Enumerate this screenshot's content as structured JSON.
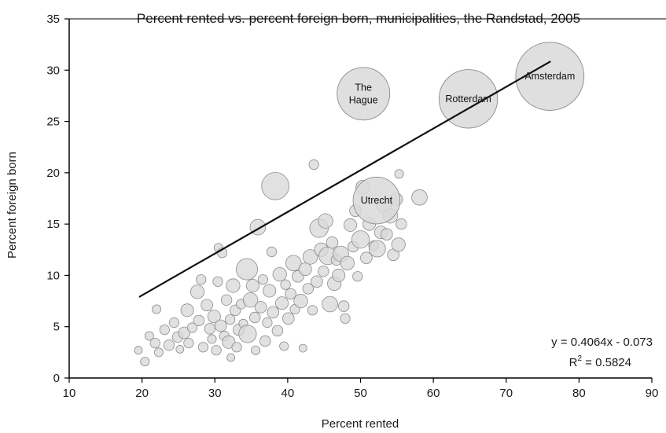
{
  "chart_data": {
    "type": "scatter",
    "title": "Percent rented vs. percent foreign born, municipalities, the Randstad, 2005",
    "xlabel": "Percent rented",
    "ylabel": "Percent foreign born",
    "xlim": [
      10,
      90
    ],
    "ylim": [
      0,
      35
    ],
    "x_ticks": [
      "10",
      "20",
      "30",
      "40",
      "50",
      "60",
      "70",
      "80",
      "90"
    ],
    "y_ticks": [
      "0",
      "5",
      "10",
      "15",
      "20",
      "25",
      "30",
      "35"
    ],
    "grid": false,
    "bubble_color": "#d9d9d9",
    "bubble_edge": "#8c8c8c",
    "trendline": {
      "equation": "y = 0.4064x - 0.073",
      "r2_label": "R",
      "r2_exp": "2",
      "r2_value": " = 0.5824",
      "slope": 0.4064,
      "intercept": -0.073,
      "x_range": [
        19.6,
        76.1
      ]
    },
    "labeled_points": [
      {
        "name": "Amsterdam",
        "lines": [
          "Amsterdam"
        ],
        "x": 76.0,
        "y": 29.4,
        "size": 7.0
      },
      {
        "name": "Rotterdam",
        "lines": [
          "Rotterdam"
        ],
        "x": 64.8,
        "y": 27.2,
        "size": 6.0
      },
      {
        "name": "The Hague",
        "lines": [
          "The",
          "Hague"
        ],
        "x": 50.4,
        "y": 27.7,
        "size": 5.4
      },
      {
        "name": "Utrecht",
        "lines": [
          "Utrecht"
        ],
        "x": 52.2,
        "y": 17.3,
        "size": 4.8
      }
    ],
    "points": [
      {
        "x": 19.5,
        "y": 2.7,
        "s": 0.8
      },
      {
        "x": 20.4,
        "y": 1.6,
        "s": 0.9
      },
      {
        "x": 21.0,
        "y": 4.1,
        "s": 0.9
      },
      {
        "x": 21.8,
        "y": 3.4,
        "s": 1.0
      },
      {
        "x": 22.0,
        "y": 6.7,
        "s": 0.9
      },
      {
        "x": 22.3,
        "y": 2.5,
        "s": 0.9
      },
      {
        "x": 23.1,
        "y": 4.7,
        "s": 1.0
      },
      {
        "x": 23.7,
        "y": 3.2,
        "s": 1.1
      },
      {
        "x": 24.4,
        "y": 5.4,
        "s": 1.0
      },
      {
        "x": 24.9,
        "y": 4.0,
        "s": 1.1
      },
      {
        "x": 25.2,
        "y": 2.8,
        "s": 0.8
      },
      {
        "x": 25.8,
        "y": 4.4,
        "s": 1.2
      },
      {
        "x": 26.2,
        "y": 6.6,
        "s": 1.3
      },
      {
        "x": 26.4,
        "y": 3.4,
        "s": 1.0
      },
      {
        "x": 26.9,
        "y": 4.9,
        "s": 1.0
      },
      {
        "x": 27.6,
        "y": 8.4,
        "s": 1.4
      },
      {
        "x": 27.8,
        "y": 5.6,
        "s": 1.1
      },
      {
        "x": 28.1,
        "y": 9.6,
        "s": 1.0
      },
      {
        "x": 28.4,
        "y": 3.0,
        "s": 1.0
      },
      {
        "x": 28.9,
        "y": 7.1,
        "s": 1.2
      },
      {
        "x": 29.3,
        "y": 4.8,
        "s": 1.1
      },
      {
        "x": 29.6,
        "y": 3.8,
        "s": 0.9
      },
      {
        "x": 29.9,
        "y": 6.0,
        "s": 1.3
      },
      {
        "x": 30.2,
        "y": 2.7,
        "s": 1.0
      },
      {
        "x": 30.4,
        "y": 9.4,
        "s": 1.0
      },
      {
        "x": 30.5,
        "y": 12.7,
        "s": 0.9
      },
      {
        "x": 30.8,
        "y": 5.1,
        "s": 1.2
      },
      {
        "x": 31.0,
        "y": 12.2,
        "s": 1.0
      },
      {
        "x": 31.3,
        "y": 4.1,
        "s": 1.0
      },
      {
        "x": 31.6,
        "y": 7.6,
        "s": 1.1
      },
      {
        "x": 31.9,
        "y": 3.5,
        "s": 1.3
      },
      {
        "x": 32.1,
        "y": 5.7,
        "s": 1.0
      },
      {
        "x": 32.2,
        "y": 2.0,
        "s": 0.8
      },
      {
        "x": 32.5,
        "y": 9.0,
        "s": 1.4
      },
      {
        "x": 32.8,
        "y": 6.6,
        "s": 1.1
      },
      {
        "x": 33.0,
        "y": 3.0,
        "s": 1.0
      },
      {
        "x": 33.3,
        "y": 4.7,
        "s": 1.2
      },
      {
        "x": 33.6,
        "y": 7.2,
        "s": 1.0
      },
      {
        "x": 33.9,
        "y": 5.3,
        "s": 0.9
      },
      {
        "x": 34.4,
        "y": 10.6,
        "s": 2.2
      },
      {
        "x": 34.5,
        "y": 4.3,
        "s": 1.8
      },
      {
        "x": 34.9,
        "y": 7.6,
        "s": 1.5
      },
      {
        "x": 35.2,
        "y": 9.0,
        "s": 1.3
      },
      {
        "x": 35.5,
        "y": 5.9,
        "s": 1.1
      },
      {
        "x": 35.6,
        "y": 2.7,
        "s": 0.9
      },
      {
        "x": 35.9,
        "y": 14.7,
        "s": 1.6
      },
      {
        "x": 36.3,
        "y": 6.9,
        "s": 1.2
      },
      {
        "x": 36.6,
        "y": 9.6,
        "s": 1.0
      },
      {
        "x": 36.9,
        "y": 3.6,
        "s": 1.1
      },
      {
        "x": 37.2,
        "y": 5.4,
        "s": 1.0
      },
      {
        "x": 37.5,
        "y": 8.5,
        "s": 1.3
      },
      {
        "x": 37.8,
        "y": 12.3,
        "s": 1.0
      },
      {
        "x": 38.0,
        "y": 6.4,
        "s": 1.2
      },
      {
        "x": 38.3,
        "y": 18.7,
        "s": 2.8
      },
      {
        "x": 38.6,
        "y": 4.6,
        "s": 1.1
      },
      {
        "x": 38.9,
        "y": 10.1,
        "s": 1.4
      },
      {
        "x": 39.2,
        "y": 7.3,
        "s": 1.3
      },
      {
        "x": 39.5,
        "y": 3.1,
        "s": 0.9
      },
      {
        "x": 39.7,
        "y": 9.1,
        "s": 1.0
      },
      {
        "x": 40.1,
        "y": 5.8,
        "s": 1.2
      },
      {
        "x": 40.4,
        "y": 8.2,
        "s": 1.1
      },
      {
        "x": 40.8,
        "y": 11.2,
        "s": 1.6
      },
      {
        "x": 41.0,
        "y": 6.7,
        "s": 1.0
      },
      {
        "x": 41.4,
        "y": 9.9,
        "s": 1.2
      },
      {
        "x": 41.8,
        "y": 7.5,
        "s": 1.4
      },
      {
        "x": 42.1,
        "y": 2.9,
        "s": 0.8
      },
      {
        "x": 42.4,
        "y": 10.6,
        "s": 1.3
      },
      {
        "x": 42.8,
        "y": 8.7,
        "s": 1.1
      },
      {
        "x": 43.1,
        "y": 11.8,
        "s": 1.5
      },
      {
        "x": 43.4,
        "y": 6.6,
        "s": 1.0
      },
      {
        "x": 43.6,
        "y": 20.8,
        "s": 1.0
      },
      {
        "x": 44.0,
        "y": 9.4,
        "s": 1.2
      },
      {
        "x": 44.3,
        "y": 14.6,
        "s": 1.9
      },
      {
        "x": 44.6,
        "y": 12.5,
        "s": 1.4
      },
      {
        "x": 44.9,
        "y": 10.4,
        "s": 1.1
      },
      {
        "x": 45.2,
        "y": 15.3,
        "s": 1.5
      },
      {
        "x": 45.5,
        "y": 11.9,
        "s": 1.8
      },
      {
        "x": 45.8,
        "y": 7.2,
        "s": 1.6
      },
      {
        "x": 46.1,
        "y": 13.2,
        "s": 1.2
      },
      {
        "x": 46.4,
        "y": 9.2,
        "s": 1.4
      },
      {
        "x": 46.7,
        "y": 11.5,
        "s": 1.1
      },
      {
        "x": 47.0,
        "y": 10.0,
        "s": 1.3
      },
      {
        "x": 47.3,
        "y": 12.1,
        "s": 1.6
      },
      {
        "x": 47.7,
        "y": 7.0,
        "s": 1.1
      },
      {
        "x": 47.9,
        "y": 5.8,
        "s": 1.0
      },
      {
        "x": 48.2,
        "y": 11.2,
        "s": 1.4
      },
      {
        "x": 48.6,
        "y": 14.9,
        "s": 1.3
      },
      {
        "x": 49.0,
        "y": 12.8,
        "s": 1.1
      },
      {
        "x": 49.3,
        "y": 16.3,
        "s": 1.2
      },
      {
        "x": 49.6,
        "y": 9.9,
        "s": 1.0
      },
      {
        "x": 50.0,
        "y": 13.5,
        "s": 1.8
      },
      {
        "x": 50.3,
        "y": 18.6,
        "s": 1.4
      },
      {
        "x": 50.8,
        "y": 11.7,
        "s": 1.2
      },
      {
        "x": 51.2,
        "y": 15.0,
        "s": 1.3
      },
      {
        "x": 51.8,
        "y": 12.9,
        "s": 1.0
      },
      {
        "x": 52.3,
        "y": 12.6,
        "s": 1.7
      },
      {
        "x": 52.8,
        "y": 14.2,
        "s": 1.3
      },
      {
        "x": 53.2,
        "y": 16.8,
        "s": 1.5
      },
      {
        "x": 53.6,
        "y": 14.0,
        "s": 1.2
      },
      {
        "x": 54.1,
        "y": 15.8,
        "s": 1.5
      },
      {
        "x": 54.5,
        "y": 12.0,
        "s": 1.2
      },
      {
        "x": 54.9,
        "y": 17.4,
        "s": 1.3
      },
      {
        "x": 55.2,
        "y": 13.0,
        "s": 1.4
      },
      {
        "x": 55.3,
        "y": 19.9,
        "s": 0.9
      },
      {
        "x": 55.6,
        "y": 15.0,
        "s": 1.1
      },
      {
        "x": 58.1,
        "y": 17.6,
        "s": 1.6
      }
    ]
  }
}
